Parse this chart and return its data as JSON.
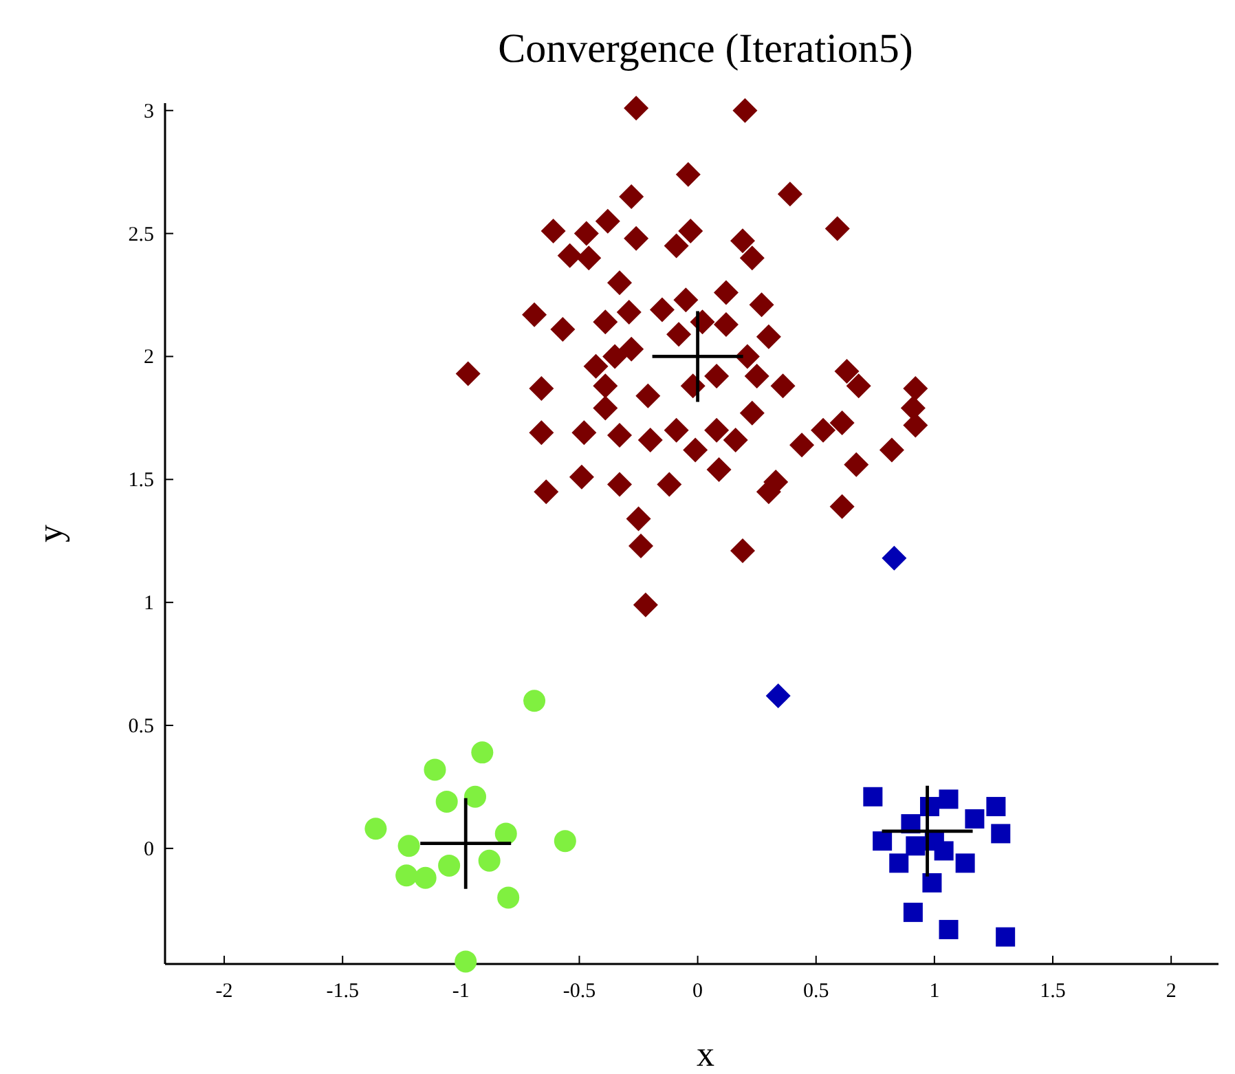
{
  "chart_data": {
    "type": "scatter",
    "title": "Convergence (Iteration5)",
    "xlabel": "x",
    "ylabel": "y",
    "xlim": [
      -2.25,
      2.2
    ],
    "ylim": [
      -0.47,
      3.03
    ],
    "xticks": [
      -2,
      -1.5,
      -1,
      -0.5,
      0,
      0.5,
      1,
      1.5,
      2
    ],
    "yticks": [
      0,
      0.5,
      1,
      1.5,
      2,
      2.5,
      3
    ],
    "grid": false,
    "series": [
      {
        "color": "#7a0000",
        "marker": "diamond",
        "x": [
          -0.26,
          0.2,
          -0.04,
          0.39,
          -0.28,
          0.59,
          -0.61,
          -0.47,
          -0.38,
          -0.26,
          -0.03,
          -0.09,
          -0.54,
          -0.46,
          0.19,
          0.23,
          -0.33,
          0.12,
          0.27,
          -0.69,
          -0.57,
          -0.39,
          -0.29,
          -0.15,
          -0.05,
          0.02,
          0.12,
          0.3,
          -0.08,
          -0.43,
          -0.35,
          -0.28,
          -0.97,
          -0.66,
          -0.39,
          -0.21,
          -0.02,
          0.08,
          0.21,
          0.25,
          0.36,
          0.63,
          0.68,
          0.92,
          0.91,
          0.92,
          -0.39,
          -0.66,
          -0.48,
          -0.33,
          -0.2,
          -0.09,
          -0.01,
          0.08,
          0.16,
          0.23,
          0.44,
          0.53,
          0.61,
          0.82,
          0.67,
          -0.64,
          -0.49,
          -0.33,
          -0.12,
          0.09,
          0.3,
          0.33,
          0.61,
          -0.25,
          -0.24,
          0.19,
          -0.22
        ],
        "values": [
          3.01,
          3.0,
          2.74,
          2.66,
          2.65,
          2.52,
          2.51,
          2.5,
          2.55,
          2.48,
          2.51,
          2.45,
          2.41,
          2.4,
          2.47,
          2.4,
          2.3,
          2.26,
          2.21,
          2.17,
          2.11,
          2.14,
          2.18,
          2.19,
          2.23,
          2.14,
          2.13,
          2.08,
          2.09,
          1.96,
          2.0,
          2.03,
          1.93,
          1.87,
          1.88,
          1.84,
          1.88,
          1.92,
          2.0,
          1.92,
          1.88,
          1.94,
          1.88,
          1.87,
          1.79,
          1.72,
          1.79,
          1.69,
          1.69,
          1.68,
          1.66,
          1.7,
          1.62,
          1.7,
          1.66,
          1.77,
          1.64,
          1.7,
          1.73,
          1.62,
          1.56,
          1.45,
          1.51,
          1.48,
          1.48,
          1.54,
          1.45,
          1.49,
          1.39,
          1.34,
          1.23,
          1.21,
          0.99
        ]
      },
      {
        "color": "#80f040",
        "marker": "circle",
        "x": [
          -0.69,
          -0.91,
          -1.11,
          -1.06,
          -0.94,
          -1.36,
          -0.81,
          -0.56,
          -1.22,
          -0.88,
          -1.23,
          -1.15,
          -1.05,
          -0.8,
          -0.98
        ],
        "values": [
          0.6,
          0.39,
          0.32,
          0.19,
          0.21,
          0.08,
          0.06,
          0.03,
          0.01,
          -0.05,
          -0.11,
          -0.12,
          -0.07,
          -0.2,
          -0.46
        ]
      },
      {
        "color": "#0000b4",
        "marker": "square",
        "x": [
          0.74,
          1.06,
          0.98,
          1.26,
          1.17,
          0.9,
          0.78,
          1.28,
          1.0,
          0.92,
          1.04,
          0.85,
          1.13,
          0.99,
          0.91,
          1.06,
          1.3
        ],
        "values": [
          0.21,
          0.2,
          0.17,
          0.17,
          0.12,
          0.1,
          0.03,
          0.06,
          0.03,
          0.01,
          -0.01,
          -0.06,
          -0.06,
          -0.14,
          -0.26,
          -0.33,
          -0.36
        ]
      },
      {
        "color": "#0000b4",
        "marker": "diamond",
        "x": [
          0.83,
          0.34
        ],
        "values": [
          1.18,
          0.62
        ]
      },
      {
        "color": "#000000",
        "marker": "cross",
        "x": [
          0,
          -0.98,
          0.97
        ],
        "values": [
          2.0,
          0.02,
          0.07
        ]
      }
    ]
  }
}
